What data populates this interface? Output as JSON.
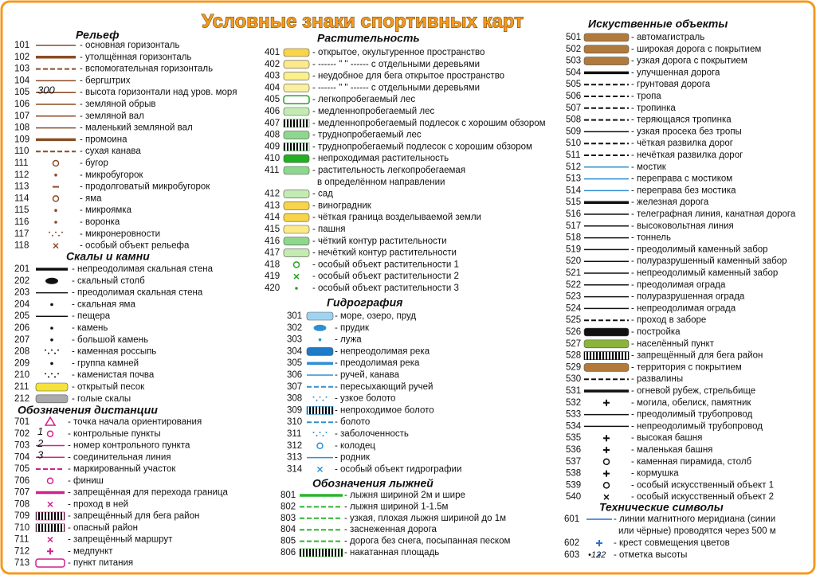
{
  "title": "Условные знаки спортивных карт",
  "sections": [
    {
      "title": "Рельеф",
      "items": [
        {
          "code": "101",
          "text": "- основная горизонталь"
        },
        {
          "code": "102",
          "text": "- утолщённая горизонталь"
        },
        {
          "code": "103",
          "text": "- вспомогательная горизонталь"
        },
        {
          "code": "104",
          "text": "- бергштрих"
        },
        {
          "code": "105",
          "text": "- высота горизонтали над уров. моря",
          "symbol_label": "300"
        },
        {
          "code": "106",
          "text": "- земляной обрыв"
        },
        {
          "code": "107",
          "text": "- земляной вал"
        },
        {
          "code": "108",
          "text": "- маленький земляной вал"
        },
        {
          "code": "109",
          "text": "- промоина"
        },
        {
          "code": "110",
          "text": "- сухая канава"
        },
        {
          "code": "111",
          "text": "- бугор"
        },
        {
          "code": "112",
          "text": "- микробугорок"
        },
        {
          "code": "113",
          "text": "- продолговатый микробугорок"
        },
        {
          "code": "114",
          "text": "- яма"
        },
        {
          "code": "115",
          "text": "- микроямка"
        },
        {
          "code": "116",
          "text": "- воронка"
        },
        {
          "code": "117",
          "text": "- микронеровности"
        },
        {
          "code": "118",
          "text": "- особый объект рельефа"
        }
      ]
    },
    {
      "title": "Скалы и камни",
      "items": [
        {
          "code": "201",
          "text": "- непреодолимая скальная стена"
        },
        {
          "code": "202",
          "text": "- скальный столб"
        },
        {
          "code": "203",
          "text": "- преодолимая скальная стена"
        },
        {
          "code": "204",
          "text": "- скальная яма"
        },
        {
          "code": "205",
          "text": "- пещера"
        },
        {
          "code": "206",
          "text": "- камень"
        },
        {
          "code": "207",
          "text": "- большой камень"
        },
        {
          "code": "208",
          "text": "- каменная россыпь"
        },
        {
          "code": "209",
          "text": "- группа камней"
        },
        {
          "code": "210",
          "text": "- каменистая почва"
        },
        {
          "code": "211",
          "text": "- открытый песок"
        },
        {
          "code": "212",
          "text": "- голые скалы"
        }
      ]
    },
    {
      "title": "Обозначения дистанции",
      "items": [
        {
          "code": "701",
          "text": "- точка начала ориентирования"
        },
        {
          "code": "702",
          "text": "- контрольные пункты",
          "symbol_label": "1"
        },
        {
          "code": "703",
          "text": "- номер контрольного пункта",
          "symbol_label": "2"
        },
        {
          "code": "704",
          "text": "- соединительная линия",
          "symbol_label": "3"
        },
        {
          "code": "705",
          "text": "- маркированный участок"
        },
        {
          "code": "706",
          "text": "- финиш"
        },
        {
          "code": "707",
          "text": "- запрещённая для перехода граница"
        },
        {
          "code": "708",
          "text": "- проход в ней"
        },
        {
          "code": "709",
          "text": "- запрещённый для бега район"
        },
        {
          "code": "710",
          "text": "- опасный район"
        },
        {
          "code": "711",
          "text": "- запрещённый маршрут"
        },
        {
          "code": "712",
          "text": "- медпункт"
        },
        {
          "code": "713",
          "text": "- пункт питания"
        }
      ]
    },
    {
      "title": "Растительность",
      "items": [
        {
          "code": "401",
          "text": "- открытое, окультуренное пространство"
        },
        {
          "code": "402",
          "text": "- ------ \" \" ------ с отдельными деревьями"
        },
        {
          "code": "403",
          "text": "- неудобное для бега открытое пространство"
        },
        {
          "code": "404",
          "text": "- ------ \" \" ------ с отдельными деревьями"
        },
        {
          "code": "405",
          "text": "- легкопробегаемый лес"
        },
        {
          "code": "406",
          "text": "- медленнопробегаемый лес"
        },
        {
          "code": "407",
          "text": "- медленнопробегаемый подлесок с хорошим обзором"
        },
        {
          "code": "408",
          "text": "- труднопробегаемый лес"
        },
        {
          "code": "409",
          "text": "- труднопробегаемый подлесок с хорошим обзором"
        },
        {
          "code": "410",
          "text": "- непроходимая растительность"
        },
        {
          "code": "411",
          "text": "- растительность легкопробегаемая",
          "text2": "в определённом направлении"
        },
        {
          "code": "412",
          "text": "- сад"
        },
        {
          "code": "413",
          "text": "- виноградник"
        },
        {
          "code": "414",
          "text": "- чёткая граница возделываемой земли"
        },
        {
          "code": "415",
          "text": "- пашня"
        },
        {
          "code": "416",
          "text": "- чёткий контур растительности"
        },
        {
          "code": "417",
          "text": "- нечёткий контур растительности"
        },
        {
          "code": "418",
          "text": "- особый объект растительности 1"
        },
        {
          "code": "419",
          "text": "- особый объект растительности 2"
        },
        {
          "code": "420",
          "text": "- особый объект растительности 3"
        }
      ]
    },
    {
      "title": "Гидрография",
      "items": [
        {
          "code": "301",
          "text": "- море, озеро, пруд"
        },
        {
          "code": "302",
          "text": "- прудик"
        },
        {
          "code": "303",
          "text": "- лужа"
        },
        {
          "code": "304",
          "text": "- непреодолимая река"
        },
        {
          "code": "305",
          "text": "- преодолимая река"
        },
        {
          "code": "306",
          "text": "- ручей, канава"
        },
        {
          "code": "307",
          "text": "- пересыхающий ручей"
        },
        {
          "code": "308",
          "text": "- узкое болото"
        },
        {
          "code": "309",
          "text": "- непроходимое болото"
        },
        {
          "code": "310",
          "text": "- болото"
        },
        {
          "code": "311",
          "text": "- заболоченность"
        },
        {
          "code": "312",
          "text": "- колодец"
        },
        {
          "code": "313",
          "text": "- родник"
        },
        {
          "code": "314",
          "text": "- особый объект гидрографии"
        }
      ]
    },
    {
      "title": "Обозначения лыжней",
      "items": [
        {
          "code": "801",
          "text": "- лыжня шириной 2м и шире"
        },
        {
          "code": "802",
          "text": "- лыжня шириной 1-1.5м"
        },
        {
          "code": "803",
          "text": "- узкая, плохая лыжня шириной до 1м"
        },
        {
          "code": "804",
          "text": "- заснеженная дорога"
        },
        {
          "code": "805",
          "text": "- дорога без снега, посыпанная песком"
        },
        {
          "code": "806",
          "text": "- накатанная площадь"
        }
      ]
    },
    {
      "title": "Искуственные объекты",
      "items": [
        {
          "code": "501",
          "text": "- автомагистраль"
        },
        {
          "code": "502",
          "text": "- широкая дорога с покрытием"
        },
        {
          "code": "503",
          "text": "- узкая дорога с покрытием"
        },
        {
          "code": "504",
          "text": "- улучшенная дорога"
        },
        {
          "code": "505",
          "text": "- грунтовая дорога"
        },
        {
          "code": "506",
          "text": "- тропа"
        },
        {
          "code": "507",
          "text": "- тропинка"
        },
        {
          "code": "508",
          "text": "- теряющаяся тропинка"
        },
        {
          "code": "509",
          "text": "- узкая просека без тропы"
        },
        {
          "code": "510",
          "text": "- чёткая развилка дорог"
        },
        {
          "code": "511",
          "text": "- нечёткая развилка дорог"
        },
        {
          "code": "512",
          "text": "- мостик"
        },
        {
          "code": "513",
          "text": "- переправа с мостиком"
        },
        {
          "code": "514",
          "text": "- переправа без мостика"
        },
        {
          "code": "515",
          "text": "- железная дорога"
        },
        {
          "code": "516",
          "text": "- телеграфная линия, канатная дорога"
        },
        {
          "code": "517",
          "text": "- высоковольтная линия"
        },
        {
          "code": "518",
          "text": "- тоннель"
        },
        {
          "code": "519",
          "text": "- преодолимый каменный забор"
        },
        {
          "code": "520",
          "text": "- полуразрушенный каменный забор"
        },
        {
          "code": "521",
          "text": "- непреодолимый каменный забор"
        },
        {
          "code": "522",
          "text": "- преодолимая ограда"
        },
        {
          "code": "523",
          "text": "- полуразрушенная ограда"
        },
        {
          "code": "524",
          "text": "- непреодолимая ограда"
        },
        {
          "code": "525",
          "text": "- проход в заборе"
        },
        {
          "code": "526",
          "text": "- постройка"
        },
        {
          "code": "527",
          "text": "- населённый пункт"
        },
        {
          "code": "528",
          "text": "- запрещённый для бега район"
        },
        {
          "code": "529",
          "text": "- территория с покрытием"
        },
        {
          "code": "530",
          "text": "- развалины"
        },
        {
          "code": "531",
          "text": "- огневой рубеж, стрельбище"
        },
        {
          "code": "532",
          "text": "- могила, обелиск, памятник"
        },
        {
          "code": "533",
          "text": "- преодолимый трубопровод"
        },
        {
          "code": "534",
          "text": "- непреодолимый трубопровод"
        },
        {
          "code": "535",
          "text": "- высокая башня"
        },
        {
          "code": "536",
          "text": "- маленькая башня"
        },
        {
          "code": "537",
          "text": "- каменная пирамида, столб"
        },
        {
          "code": "538",
          "text": "- кормушка"
        },
        {
          "code": "539",
          "text": "- особый искусственный объект 1"
        },
        {
          "code": "540",
          "text": "- особый искусственный объект 2"
        }
      ]
    },
    {
      "title": "Технические символы",
      "items": [
        {
          "code": "601",
          "text": "- линии магнитного меридиана (синии",
          "text2": "или чёрные) проводятся через 500 м"
        },
        {
          "code": "602",
          "text": "- крест совмещения цветов"
        },
        {
          "code": "603",
          "text": "- отметка высоты",
          "symbol_label": "•122"
        }
      ]
    }
  ]
}
